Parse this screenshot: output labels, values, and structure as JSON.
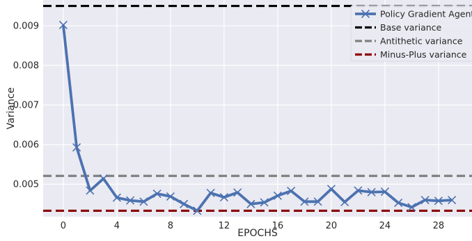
{
  "chart_data": {
    "type": "line",
    "title": "",
    "xlabel": "EPOCHS",
    "ylabel": "Variance",
    "xlim": [
      -1.5,
      30.5
    ],
    "ylim": [
      0.00418,
      0.00965
    ],
    "x_ticks": [
      0,
      4,
      8,
      12,
      16,
      20,
      24,
      28
    ],
    "y_ticks": [
      0.005,
      0.006,
      0.007,
      0.008,
      0.009
    ],
    "y_tick_labels": [
      "0.005",
      "0.006",
      "0.007",
      "0.008",
      "0.009"
    ],
    "grid": true,
    "background_color": "#eaeaf2",
    "legend_position": "top-right",
    "series": [
      {
        "name": "Policy Gradient Agent V",
        "kind": "line",
        "marker": "x",
        "color": "#4c72b0",
        "x": [
          0,
          1,
          2,
          3,
          4,
          5,
          6,
          7,
          8,
          9,
          10,
          11,
          12,
          13,
          14,
          15,
          16,
          17,
          18,
          19,
          20,
          21,
          22,
          23,
          24,
          25,
          26,
          27,
          28,
          29
        ],
        "y": [
          0.00902,
          0.00593,
          0.00484,
          0.00514,
          0.00466,
          0.00459,
          0.00456,
          0.00476,
          0.00469,
          0.0045,
          0.00433,
          0.00478,
          0.00467,
          0.00479,
          0.0045,
          0.00454,
          0.00471,
          0.00483,
          0.00456,
          0.00456,
          0.00488,
          0.00455,
          0.00484,
          0.0048,
          0.00481,
          0.00453,
          0.00442,
          0.0046,
          0.00458,
          0.0046
        ]
      },
      {
        "name": "Base variance",
        "kind": "hline",
        "value": 0.0095,
        "color": "#000000"
      },
      {
        "name": "Antithetic variance",
        "kind": "hline",
        "value": 0.00521,
        "color": "#808080"
      },
      {
        "name": "Minus-Plus variance",
        "kind": "hline",
        "value": 0.00433,
        "color": "#8b0000"
      }
    ]
  }
}
